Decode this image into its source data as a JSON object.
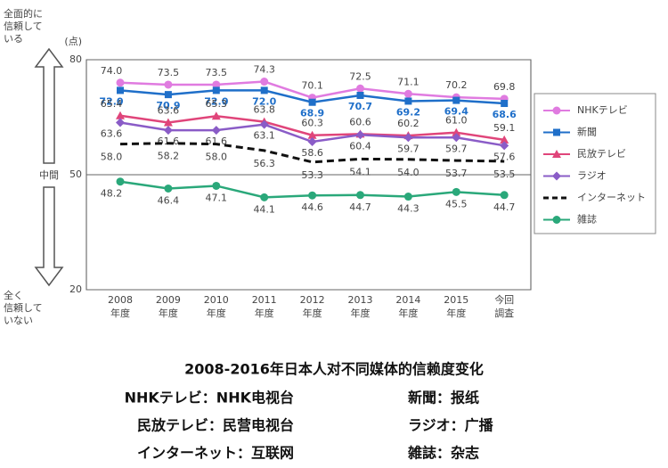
{
  "chart_data": {
    "type": "line",
    "categories": [
      "2008\n年度",
      "2009\n年度",
      "2010\n年度",
      "2011\n年度",
      "2012\n年度",
      "2013\n年度",
      "2014\n年度",
      "2015\n年度",
      "今回\n調査"
    ],
    "ylim": [
      20,
      80
    ],
    "yticks": [
      20,
      50,
      80
    ],
    "grid": true,
    "y_unit": "(点)",
    "scale_notes": {
      "top": "全面的に\n信頼して\nいる",
      "middle": "中間",
      "bottom": "全く\n信頼して\nいない"
    },
    "legend": "right",
    "series": [
      {
        "name": "NHKテレビ",
        "color": "#e07be0",
        "marker": "circle",
        "values": [
          74.0,
          73.5,
          73.5,
          74.3,
          70.1,
          72.5,
          71.1,
          70.2,
          69.8
        ],
        "value_labels": [
          "74.0",
          "73.5",
          "73.5",
          "74.3",
          "70.1",
          "72.5",
          "71.1",
          "70.2",
          "69.8"
        ]
      },
      {
        "name": "新聞",
        "color": "#1f6fc9",
        "marker": "square",
        "values": [
          72.0,
          70.9,
          72.0,
          72.0,
          68.9,
          70.7,
          69.2,
          69.4,
          68.6
        ],
        "value_labels": [
          "72.0",
          "70.9",
          "72.0",
          "72.0",
          "68.9",
          "70.7",
          "69.2",
          "69.4",
          "68.6"
        ]
      },
      {
        "name": "民放テレビ",
        "color": "#e0457a",
        "marker": "triangle",
        "values": [
          65.4,
          63.6,
          65.3,
          63.8,
          60.3,
          60.6,
          60.2,
          61.0,
          59.1
        ],
        "value_labels": [
          "65.4",
          "63.6",
          "65.3",
          "63.8",
          "60.3",
          "60.6",
          "60.2",
          "61.0",
          "59.1"
        ]
      },
      {
        "name": "ラジオ",
        "color": "#8a5cc7",
        "marker": "diamond",
        "values": [
          63.6,
          61.6,
          61.6,
          63.1,
          58.6,
          60.4,
          59.7,
          59.7,
          57.6
        ],
        "value_labels": [
          "63.6",
          "61.6",
          "61.6",
          "63.1",
          "58.6",
          "60.4",
          "59.7",
          "59.7",
          "57.6"
        ]
      },
      {
        "name": "インターネット",
        "color": "#111111",
        "marker": "none",
        "dashed": true,
        "values": [
          58.0,
          58.2,
          58.0,
          56.3,
          53.3,
          54.1,
          54.0,
          53.7,
          53.5
        ],
        "value_labels": [
          "58.0",
          "58.2",
          "58.0",
          "56.3",
          "53.3",
          "54.1",
          "54.0",
          "53.7",
          "53.5"
        ]
      },
      {
        "name": "雑誌",
        "color": "#2aa87a",
        "marker": "circle",
        "values": [
          48.2,
          46.4,
          47.1,
          44.1,
          44.6,
          44.7,
          44.3,
          45.5,
          44.7
        ],
        "value_labels": [
          "48.2",
          "46.4",
          "47.1",
          "44.1",
          "44.6",
          "44.7",
          "44.3",
          "45.5",
          "44.7"
        ]
      }
    ],
    "caption": {
      "title": "2008-2016年日本人对不同媒体的信赖度变化",
      "lines": [
        [
          "NHKテレビ：NHK电视台",
          "新聞：报纸"
        ],
        [
          "民放テレビ：民营电视台",
          "ラジオ：广播"
        ],
        [
          "インターネット：互联网",
          "雑誌：杂志"
        ]
      ]
    }
  }
}
